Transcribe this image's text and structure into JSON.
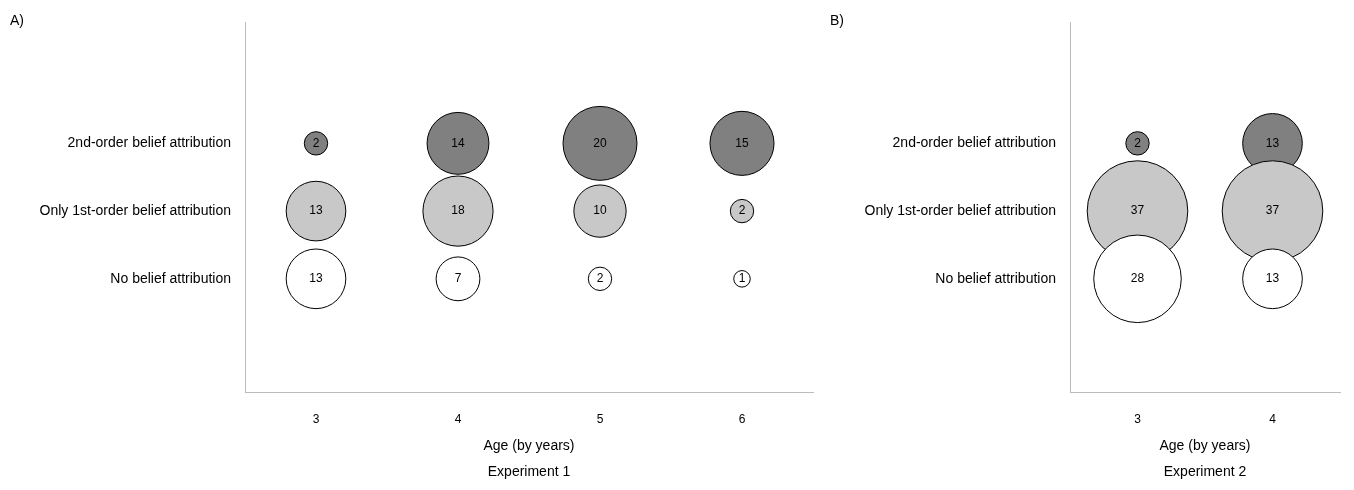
{
  "chart_data": [
    {
      "type": "bubble",
      "orientation": "horizontal",
      "title": "A)",
      "xlabel": "Age (by years)",
      "annotations": [
        "Experiment 1"
      ],
      "categories": [
        "2nd-order belief attribution",
        "Only 1st-order belief attribution",
        "No belief attribution"
      ],
      "xlim": [
        2.5,
        6.5
      ],
      "xticks": [
        3,
        4,
        5,
        6
      ],
      "grid": false,
      "legend": false,
      "series": [
        {
          "colors": [
            "#808080",
            "#c8c8c8",
            "#ffffff"
          ],
          "values": [
            3,
            3,
            3
          ],
          "sizes": [
            2,
            13,
            13
          ],
          "value_labels": [
            "2",
            "13",
            "13"
          ]
        },
        {
          "colors": [
            "#808080",
            "#c8c8c8",
            "#ffffff"
          ],
          "values": [
            4,
            4,
            4
          ],
          "sizes": [
            14,
            18,
            7
          ],
          "value_labels": [
            "14",
            "18",
            "7"
          ]
        },
        {
          "colors": [
            "#808080",
            "#c8c8c8",
            "#ffffff"
          ],
          "values": [
            5,
            5,
            5
          ],
          "sizes": [
            20,
            10,
            2
          ],
          "value_labels": [
            "20",
            "10",
            "2"
          ]
        },
        {
          "colors": [
            "#808080",
            "#c8c8c8",
            "#ffffff"
          ],
          "values": [
            6,
            6,
            6
          ],
          "sizes": [
            15,
            2,
            1
          ],
          "value_labels": [
            "15",
            "2",
            "1"
          ]
        }
      ]
    },
    {
      "type": "bubble",
      "orientation": "horizontal",
      "title": "B)",
      "xlabel": "Age (by years)",
      "annotations": [
        "Experiment 2"
      ],
      "categories": [
        "2nd-order belief attribution",
        "Only 1st-order belief attribution",
        "No belief attribution"
      ],
      "xlim": [
        2.5,
        4.5
      ],
      "xticks": [
        3,
        4
      ],
      "grid": false,
      "legend": false,
      "series": [
        {
          "colors": [
            "#808080",
            "#c8c8c8",
            "#ffffff"
          ],
          "values": [
            3,
            3,
            3
          ],
          "sizes": [
            2,
            37,
            28
          ],
          "value_labels": [
            "2",
            "37",
            "28"
          ]
        },
        {
          "colors": [
            "#808080",
            "#c8c8c8",
            "#ffffff"
          ],
          "values": [
            4,
            4,
            4
          ],
          "sizes": [
            13,
            37,
            13
          ],
          "value_labels": [
            "13",
            "37",
            "13"
          ]
        }
      ]
    }
  ]
}
